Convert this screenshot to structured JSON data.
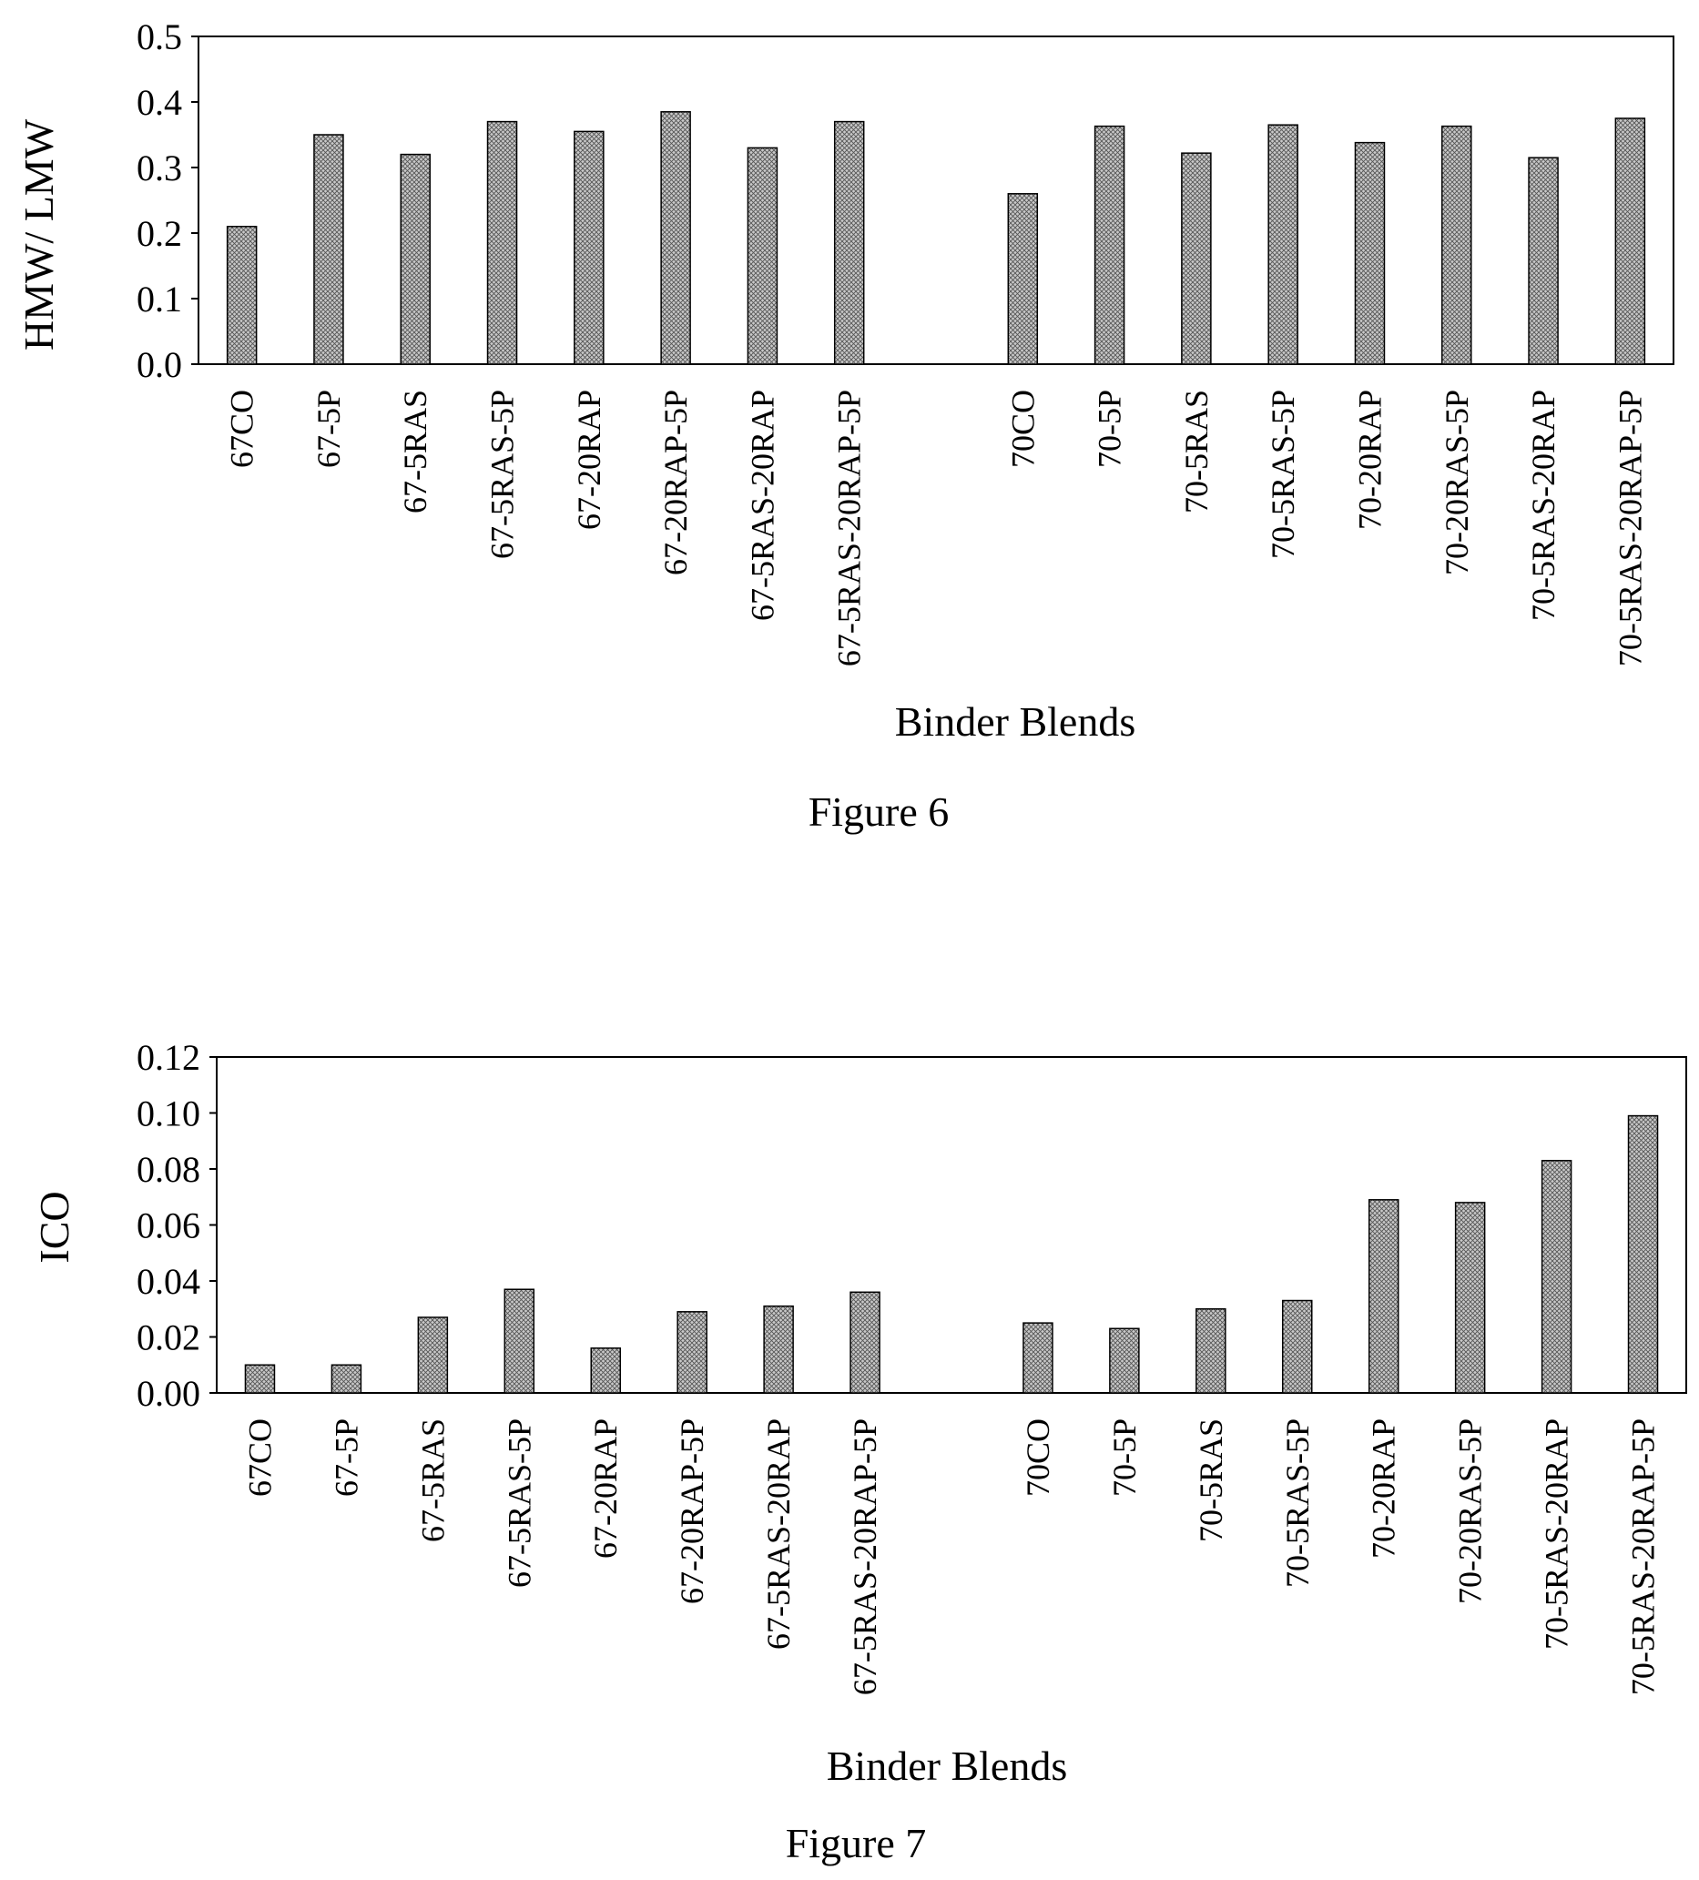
{
  "chart_data": [
    {
      "type": "bar",
      "caption": "Figure 6",
      "title": "",
      "xlabel": "Binder Blends",
      "ylabel": "HMW/ LMW",
      "ylim": [
        0.0,
        0.5
      ],
      "yticks": [
        "0.0",
        "0.1",
        "0.2",
        "0.3",
        "0.4",
        "0.5"
      ],
      "grid": false,
      "legend": "none",
      "bar_fill": "crosshatch gray",
      "categories": [
        "67CO",
        "67-5P",
        "67-5RAS",
        "67-5RAS-5P",
        "67-20RAP",
        "67-20RAP-5P",
        "67-5RAS-20RAP",
        "67-5RAS-20RAP-5P",
        "",
        "70CO",
        "70-5P",
        "70-5RAS",
        "70-5RAS-5P",
        "70-20RAP",
        "70-20RAS-5P",
        "70-5RAS-20RAP",
        "70-5RAS-20RAP-5P"
      ],
      "values": [
        0.21,
        0.35,
        0.32,
        0.37,
        0.355,
        0.385,
        0.33,
        0.37,
        null,
        0.26,
        0.363,
        0.322,
        0.365,
        0.338,
        0.363,
        0.315,
        0.375
      ]
    },
    {
      "type": "bar",
      "caption": "Figure 7",
      "title": "",
      "xlabel": "Binder Blends",
      "ylabel": "ICO",
      "ylim": [
        0.0,
        0.12
      ],
      "yticks": [
        "0.00",
        "0.02",
        "0.04",
        "0.06",
        "0.08",
        "0.10",
        "0.12"
      ],
      "grid": false,
      "legend": "none",
      "bar_fill": "crosshatch gray",
      "categories": [
        "67CO",
        "67-5P",
        "67-5RAS",
        "67-5RAS-5P",
        "67-20RAP",
        "67-20RAP-5P",
        "67-5RAS-20RAP",
        "67-5RAS-20RAP-5P",
        "",
        "70CO",
        "70-5P",
        "70-5RAS",
        "70-5RAS-5P",
        "70-20RAP",
        "70-20RAS-5P",
        "70-5RAS-20RAP",
        "70-5RAS-20RAP-5P"
      ],
      "values": [
        0.01,
        0.01,
        0.027,
        0.037,
        0.016,
        0.029,
        0.031,
        0.036,
        null,
        0.025,
        0.023,
        0.03,
        0.033,
        0.069,
        0.068,
        0.083,
        0.099
      ]
    }
  ]
}
